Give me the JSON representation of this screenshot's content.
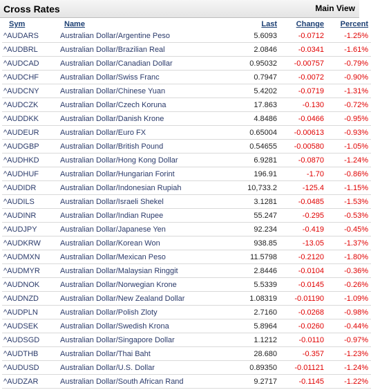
{
  "header": {
    "title": "Cross Rates",
    "view_button": "Main View"
  },
  "columns": {
    "sym": "Sym",
    "name": "Name",
    "last": "Last",
    "change": "Change",
    "percent": "Percent"
  },
  "rows": [
    {
      "sym": "^AUDARS",
      "name": "Australian Dollar/Argentine Peso",
      "last": "5.6093",
      "change": "-0.0712",
      "percent": "-1.25%"
    },
    {
      "sym": "^AUDBRL",
      "name": "Australian Dollar/Brazilian Real",
      "last": "2.0846",
      "change": "-0.0341",
      "percent": "-1.61%"
    },
    {
      "sym": "^AUDCAD",
      "name": "Australian Dollar/Canadian Dollar",
      "last": "0.95032",
      "change": "-0.00757",
      "percent": "-0.79%"
    },
    {
      "sym": "^AUDCHF",
      "name": "Australian Dollar/Swiss Franc",
      "last": "0.7947",
      "change": "-0.0072",
      "percent": "-0.90%"
    },
    {
      "sym": "^AUDCNY",
      "name": "Australian Dollar/Chinese Yuan",
      "last": "5.4202",
      "change": "-0.0719",
      "percent": "-1.31%"
    },
    {
      "sym": "^AUDCZK",
      "name": "Australian Dollar/Czech Koruna",
      "last": "17.863",
      "change": "-0.130",
      "percent": "-0.72%"
    },
    {
      "sym": "^AUDDKK",
      "name": "Australian Dollar/Danish Krone",
      "last": "4.8486",
      "change": "-0.0466",
      "percent": "-0.95%"
    },
    {
      "sym": "^AUDEUR",
      "name": "Australian Dollar/Euro FX",
      "last": "0.65004",
      "change": "-0.00613",
      "percent": "-0.93%"
    },
    {
      "sym": "^AUDGBP",
      "name": "Australian Dollar/British Pound",
      "last": "0.54655",
      "change": "-0.00580",
      "percent": "-1.05%"
    },
    {
      "sym": "^AUDHKD",
      "name": "Australian Dollar/Hong Kong Dollar",
      "last": "6.9281",
      "change": "-0.0870",
      "percent": "-1.24%"
    },
    {
      "sym": "^AUDHUF",
      "name": "Australian Dollar/Hungarian Forint",
      "last": "196.91",
      "change": "-1.70",
      "percent": "-0.86%"
    },
    {
      "sym": "^AUDIDR",
      "name": "Australian Dollar/Indonesian Rupiah",
      "last": "10,733.2",
      "change": "-125.4",
      "percent": "-1.15%"
    },
    {
      "sym": "^AUDILS",
      "name": "Australian Dollar/Israeli Shekel",
      "last": "3.1281",
      "change": "-0.0485",
      "percent": "-1.53%"
    },
    {
      "sym": "^AUDINR",
      "name": "Australian Dollar/Indian Rupee",
      "last": "55.247",
      "change": "-0.295",
      "percent": "-0.53%"
    },
    {
      "sym": "^AUDJPY",
      "name": "Australian Dollar/Japanese Yen",
      "last": "92.234",
      "change": "-0.419",
      "percent": "-0.45%"
    },
    {
      "sym": "^AUDKRW",
      "name": "Australian Dollar/Korean Won",
      "last": "938.85",
      "change": "-13.05",
      "percent": "-1.37%"
    },
    {
      "sym": "^AUDMXN",
      "name": "Australian Dollar/Mexican Peso",
      "last": "11.5798",
      "change": "-0.2120",
      "percent": "-1.80%"
    },
    {
      "sym": "^AUDMYR",
      "name": "Australian Dollar/Malaysian Ringgit",
      "last": "2.8446",
      "change": "-0.0104",
      "percent": "-0.36%"
    },
    {
      "sym": "^AUDNOK",
      "name": "Australian Dollar/Norwegian Krone",
      "last": "5.5339",
      "change": "-0.0145",
      "percent": "-0.26%"
    },
    {
      "sym": "^AUDNZD",
      "name": "Australian Dollar/New Zealand Dollar",
      "last": "1.08319",
      "change": "-0.01190",
      "percent": "-1.09%"
    },
    {
      "sym": "^AUDPLN",
      "name": "Australian Dollar/Polish Zloty",
      "last": "2.7160",
      "change": "-0.0268",
      "percent": "-0.98%"
    },
    {
      "sym": "^AUDSEK",
      "name": "Australian Dollar/Swedish Krona",
      "last": "5.8964",
      "change": "-0.0260",
      "percent": "-0.44%"
    },
    {
      "sym": "^AUDSGD",
      "name": "Australian Dollar/Singapore Dollar",
      "last": "1.1212",
      "change": "-0.0110",
      "percent": "-0.97%"
    },
    {
      "sym": "^AUDTHB",
      "name": "Australian Dollar/Thai Baht",
      "last": "28.680",
      "change": "-0.357",
      "percent": "-1.23%"
    },
    {
      "sym": "^AUDUSD",
      "name": "Australian Dollar/U.S. Dollar",
      "last": "0.89350",
      "change": "-0.01121",
      "percent": "-1.24%"
    },
    {
      "sym": "^AUDZAR",
      "name": "Australian Dollar/South African Rand",
      "last": "9.2717",
      "change": "-0.1145",
      "percent": "-1.22%"
    }
  ],
  "colors": {
    "negative": "#e00000",
    "header_link": "#1c3f73",
    "text": "#2a3a6a"
  }
}
